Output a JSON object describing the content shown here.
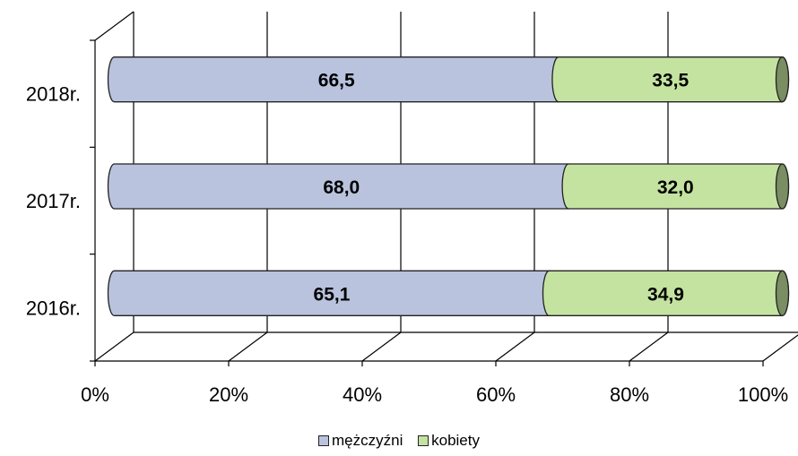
{
  "chart_data": {
    "type": "bar",
    "orientation": "horizontal",
    "stacked": "percent",
    "categories": [
      "2018r.",
      "2017r.",
      "2016r."
    ],
    "series": [
      {
        "name": "mężczyźni",
        "values": [
          66.5,
          68.0,
          65.1
        ],
        "labels": [
          "66,5",
          "68,0",
          "65,1"
        ],
        "color": "#b9c3de"
      },
      {
        "name": "kobiety",
        "values": [
          33.5,
          32.0,
          34.9
        ],
        "labels": [
          "33,5",
          "32,0",
          "34,9"
        ],
        "color": "#c4e3a0"
      }
    ],
    "xticks": [
      "0%",
      "20%",
      "40%",
      "60%",
      "80%",
      "100%"
    ],
    "xlim": [
      0,
      100
    ],
    "grid": true,
    "legend_position": "bottom"
  }
}
